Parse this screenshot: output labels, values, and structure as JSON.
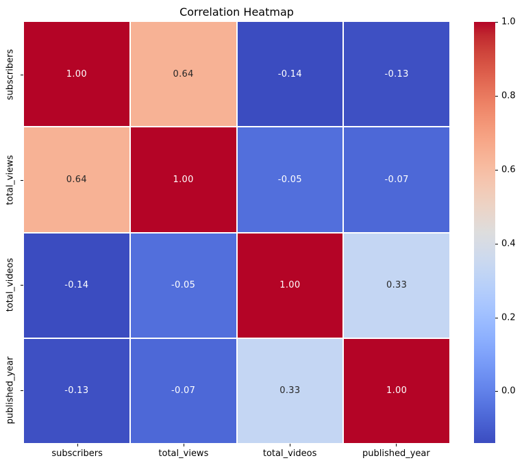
{
  "title": "Correlation Heatmap",
  "chart_data": {
    "type": "heatmap",
    "title": "Correlation Heatmap",
    "categories": [
      "subscribers",
      "total_views",
      "total_videos",
      "published_year"
    ],
    "x_tick_labels": [
      "subscribers",
      "total_views",
      "total_videos",
      "published_year"
    ],
    "y_tick_labels": [
      "subscribers",
      "total_views",
      "total_videos",
      "published_year"
    ],
    "matrix": [
      [
        1.0,
        0.64,
        -0.14,
        -0.13
      ],
      [
        0.64,
        1.0,
        -0.05,
        -0.07
      ],
      [
        -0.14,
        -0.05,
        1.0,
        0.33
      ],
      [
        -0.13,
        -0.07,
        0.33,
        1.0
      ]
    ],
    "cell_labels": [
      [
        "1.00",
        "0.64",
        "-0.14",
        "-0.13"
      ],
      [
        "0.64",
        "1.00",
        "-0.05",
        "-0.07"
      ],
      [
        "-0.14",
        "-0.05",
        "1.00",
        "0.33"
      ],
      [
        "-0.13",
        "-0.07",
        "0.33",
        "1.00"
      ]
    ],
    "vmin": -0.14,
    "vmax": 1.0,
    "colormap_name": "coolwarm",
    "colormap_stops": [
      "#3b4cc0",
      "#445acc",
      "#4d68d7",
      "#5775e1",
      "#6282ea",
      "#6c8ef1",
      "#779af7",
      "#82a5fb",
      "#8db0fe",
      "#98b9ff",
      "#a3c2ff",
      "#aec9fd",
      "#b8d0f9",
      "#c2d5f4",
      "#ccd9ee",
      "#d5dbe6",
      "#dddddd",
      "#e5d8d1",
      "#ecd3c5",
      "#f1ccb9",
      "#f5c4ad",
      "#f7bba0",
      "#f7b194",
      "#f7a687",
      "#f49a7b",
      "#f18d6f",
      "#ec7f63",
      "#e57058",
      "#de604d",
      "#d55042",
      "#cb3e38",
      "#c0282f",
      "#b40426"
    ],
    "colorbar_ticks": [
      {
        "label": "1.0",
        "value": 1.0
      },
      {
        "label": "0.8",
        "value": 0.8
      },
      {
        "label": "0.6",
        "value": 0.6
      },
      {
        "label": "0.4",
        "value": 0.4
      },
      {
        "label": "0.2",
        "value": 0.2
      },
      {
        "label": "0.0",
        "value": 0.0
      }
    ],
    "legend_position": "right-colorbar",
    "grid": false,
    "cell_gap_color": "#ffffff",
    "annotation_text_light": "#ffffff",
    "annotation_text_dark": "#262626",
    "tick_color": "#000000"
  }
}
